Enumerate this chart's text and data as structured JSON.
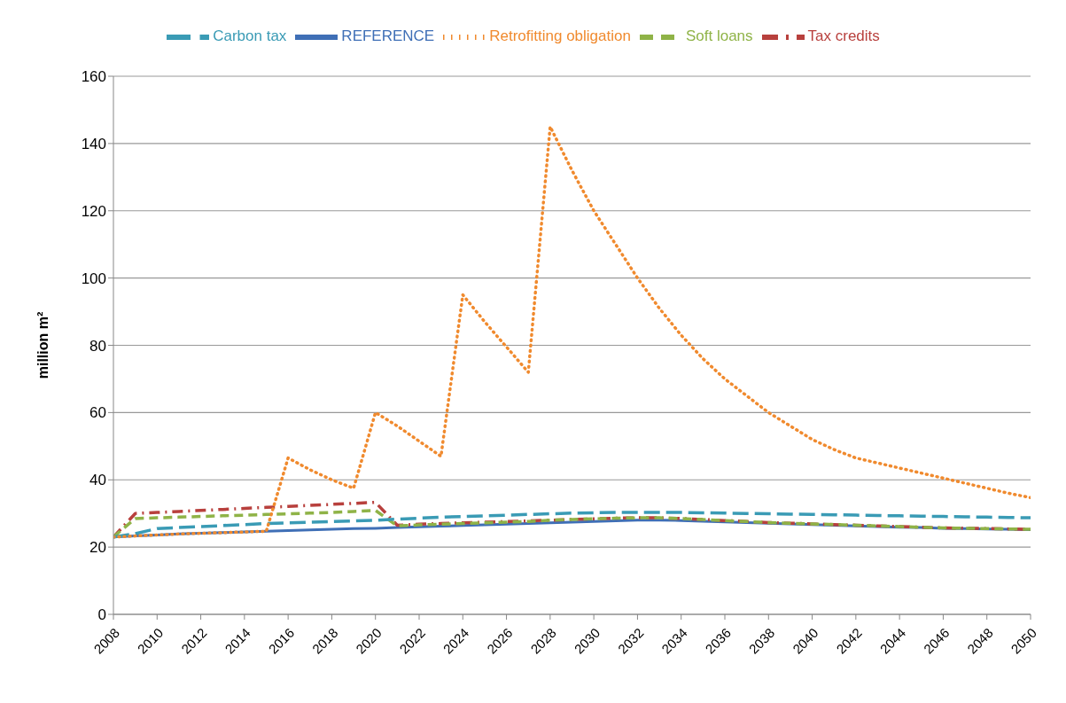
{
  "chart_data": {
    "type": "line",
    "ylabel": "million m²",
    "x": [
      2008,
      2009,
      2010,
      2011,
      2012,
      2013,
      2014,
      2015,
      2016,
      2017,
      2018,
      2019,
      2020,
      2021,
      2022,
      2023,
      2024,
      2025,
      2026,
      2027,
      2028,
      2029,
      2030,
      2031,
      2032,
      2033,
      2034,
      2035,
      2036,
      2037,
      2038,
      2039,
      2040,
      2041,
      2042,
      2043,
      2044,
      2045,
      2046,
      2047,
      2048,
      2049,
      2050
    ],
    "series": [
      {
        "name": "REFERENCE",
        "color": "#3f6fb6",
        "line_style": "solid",
        "values": [
          23,
          23.3,
          23.6,
          23.9,
          24.1,
          24.3,
          24.5,
          24.7,
          24.9,
          25.1,
          25.3,
          25.5,
          25.6,
          25.8,
          26,
          26.2,
          26.4,
          26.6,
          26.8,
          27,
          27.2,
          27.4,
          27.6,
          27.8,
          28,
          28,
          27.9,
          27.7,
          27.5,
          27.3,
          27.1,
          26.9,
          26.7,
          26.5,
          26.3,
          26.1,
          25.9,
          25.8,
          25.6,
          25.5,
          25.4,
          25.3,
          25.2
        ]
      },
      {
        "name": "Tax credits",
        "color": "#b8403d",
        "line_style": "dashdot",
        "values": [
          23,
          30,
          30.3,
          30.6,
          30.9,
          31.2,
          31.5,
          31.8,
          32.1,
          32.4,
          32.7,
          33,
          33.3,
          26.5,
          26.8,
          27,
          27.2,
          27.4,
          27.6,
          27.8,
          28,
          28.2,
          28.4,
          28.6,
          28.7,
          28.7,
          28.5,
          28.2,
          27.9,
          27.6,
          27.3,
          27.1,
          26.9,
          26.7,
          26.5,
          26.3,
          26.1,
          25.9,
          25.7,
          25.6,
          25.5,
          25.4,
          25.3
        ]
      },
      {
        "name": "Soft loans",
        "color": "#8fb347",
        "line_style": "dashed",
        "values": [
          23,
          28.5,
          28.7,
          28.9,
          29.1,
          29.3,
          29.5,
          29.7,
          29.9,
          30.1,
          30.3,
          30.6,
          30.9,
          26.3,
          26.6,
          26.8,
          27,
          27.2,
          27.4,
          27.6,
          28,
          28.2,
          28.4,
          28.6,
          28.7,
          28.7,
          28.5,
          28.2,
          27.9,
          27.6,
          27.3,
          27.1,
          26.9,
          26.7,
          26.5,
          26.3,
          26.1,
          25.9,
          25.7,
          25.6,
          25.5,
          25.4,
          25.3
        ]
      },
      {
        "name": "Carbon tax",
        "color": "#3a9bb5",
        "line_style": "longdash",
        "values": [
          23,
          24,
          25.5,
          25.8,
          26.1,
          26.4,
          26.7,
          27,
          27.2,
          27.4,
          27.6,
          27.8,
          28,
          28.3,
          28.6,
          28.9,
          29.1,
          29.3,
          29.5,
          29.7,
          29.9,
          30.1,
          30.2,
          30.3,
          30.3,
          30.3,
          30.3,
          30.2,
          30.1,
          30,
          29.9,
          29.8,
          29.7,
          29.6,
          29.5,
          29.4,
          29.3,
          29.2,
          29.1,
          29,
          28.9,
          28.8,
          28.7
        ]
      },
      {
        "name": "Retrofitting obligation",
        "color": "#f08a2e",
        "line_style": "dotted",
        "values": [
          23,
          23.3,
          23.6,
          23.9,
          24.1,
          24.3,
          24.5,
          24.7,
          46.5,
          43,
          40,
          37.5,
          60,
          56,
          51.5,
          47,
          95,
          87,
          79.5,
          72,
          145,
          132,
          120,
          110,
          100,
          91,
          83,
          76,
          70,
          65,
          60,
          56,
          52,
          49,
          46.5,
          45,
          43.5,
          42,
          40.5,
          39,
          37.5,
          36,
          34.7
        ]
      }
    ],
    "xlim": [
      2008,
      2050
    ],
    "xticks": [
      2008,
      2010,
      2012,
      2014,
      2016,
      2018,
      2020,
      2022,
      2024,
      2026,
      2028,
      2030,
      2032,
      2034,
      2036,
      2038,
      2040,
      2042,
      2044,
      2046,
      2048,
      2050
    ],
    "ylim": [
      0,
      160
    ],
    "yticks": [
      0,
      20,
      40,
      60,
      80,
      100,
      120,
      140,
      160
    ],
    "grid": "y",
    "legend": "top",
    "marker": "none"
  }
}
